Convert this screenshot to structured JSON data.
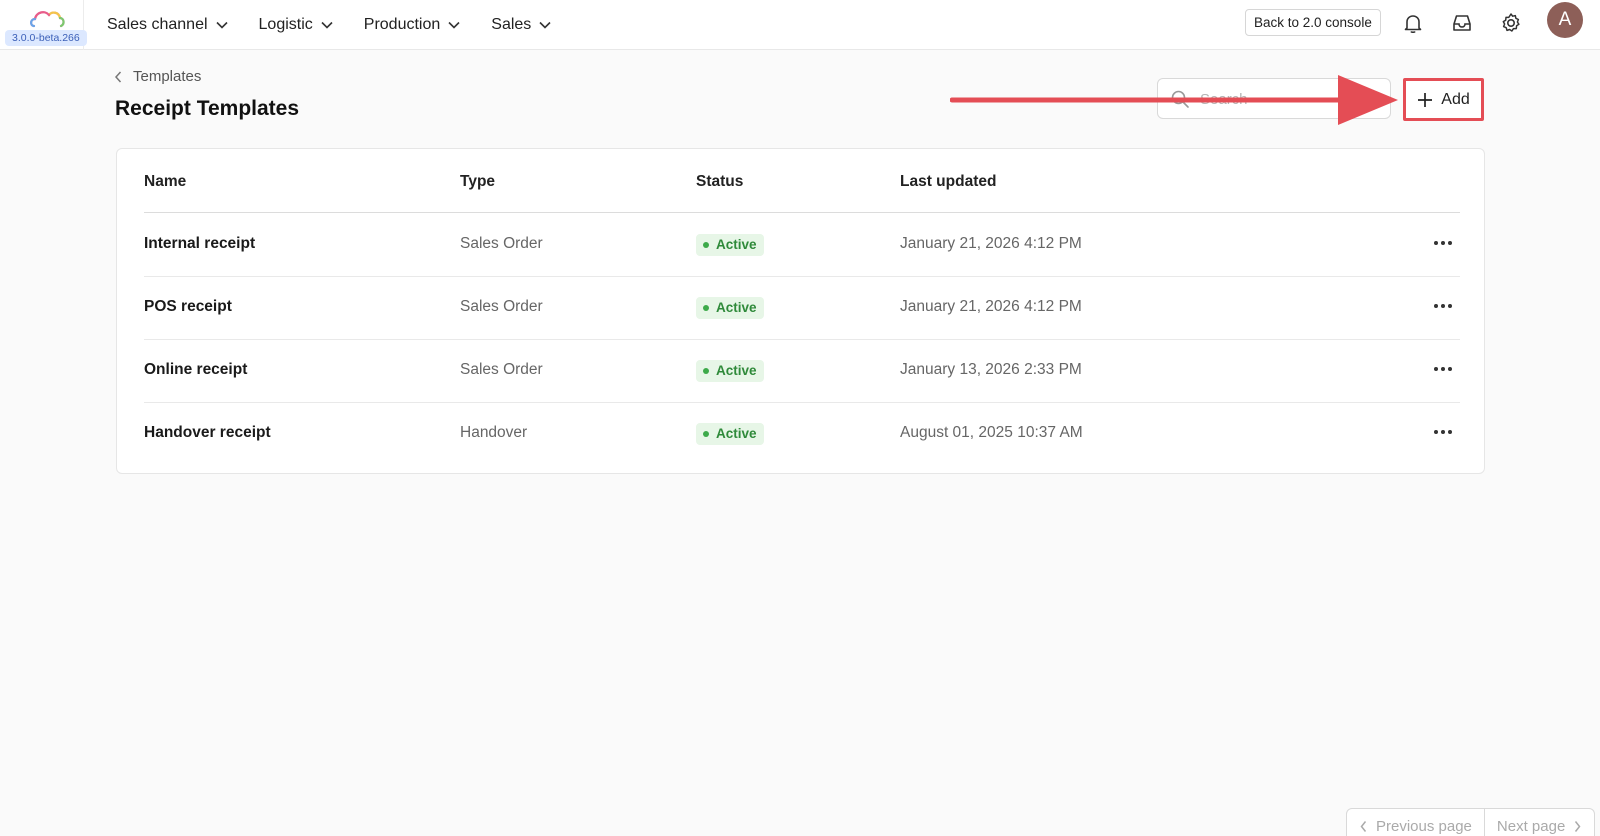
{
  "app": {
    "version": "3.0.0-beta.266",
    "nav": [
      {
        "label": "Sales channel"
      },
      {
        "label": "Logistic"
      },
      {
        "label": "Production"
      },
      {
        "label": "Sales"
      }
    ],
    "back_button": "Back to 2.0 console",
    "avatar_initial": "A",
    "icons": [
      "bell-icon",
      "inbox-icon",
      "gear-icon"
    ]
  },
  "page": {
    "breadcrumb": "Templates",
    "title": "Receipt Templates",
    "search_placeholder": "Search",
    "add_label": "Add",
    "annotation_color": "#e44d55"
  },
  "table": {
    "columns": {
      "name": "Name",
      "type": "Type",
      "status": "Status",
      "last_updated": "Last updated"
    },
    "rows": [
      {
        "name": "Internal receipt",
        "type": "Sales Order",
        "status": "Active",
        "last_updated": "January 21, 2026 4:12 PM"
      },
      {
        "name": "POS receipt",
        "type": "Sales Order",
        "status": "Active",
        "last_updated": "January 21, 2026 4:12 PM"
      },
      {
        "name": "Online receipt",
        "type": "Sales Order",
        "status": "Active",
        "last_updated": "January 13, 2026 2:33 PM"
      },
      {
        "name": "Handover receipt",
        "type": "Handover",
        "status": "Active",
        "last_updated": "August 01, 2025 10:37 AM"
      }
    ]
  },
  "pagination": {
    "previous": "Previous page",
    "next": "Next page"
  },
  "colors": {
    "status_active_bg": "#e7f6e7",
    "status_active_text": "#2f8a3a",
    "avatar_bg": "#8d5f58"
  }
}
